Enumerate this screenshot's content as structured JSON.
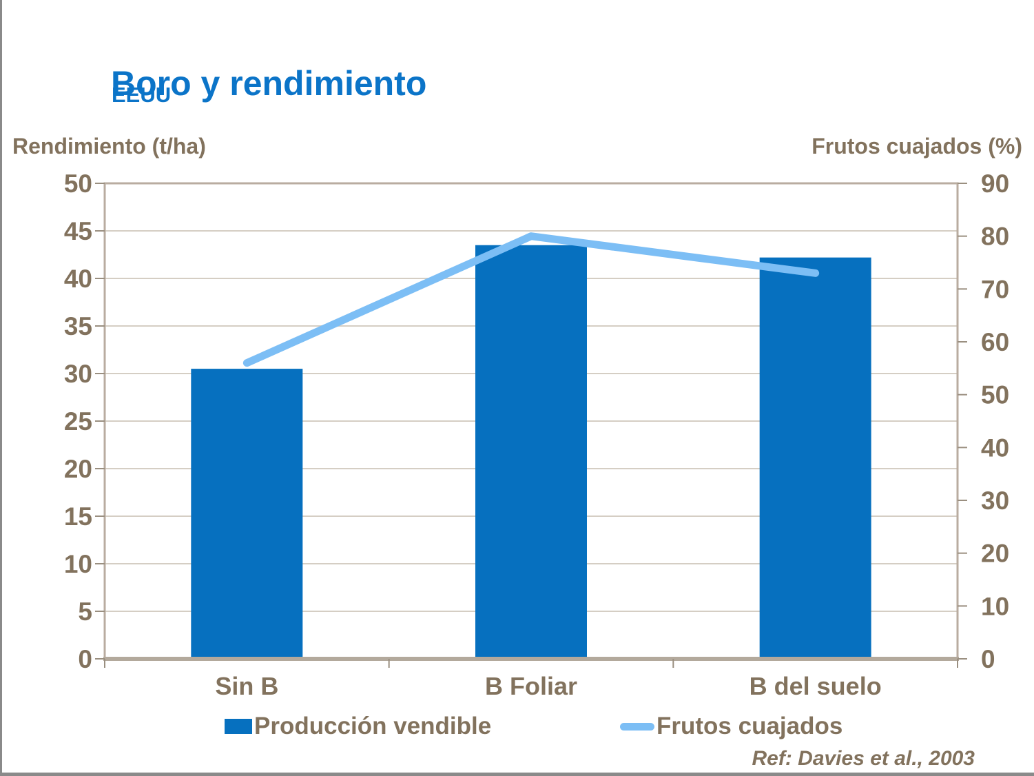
{
  "slide": {
    "title": "Boro y rendimiento",
    "subtitle": "EEUU",
    "reference": "Ref: Davies et al., 2003"
  },
  "axes": {
    "left_title": "Rendimiento (t/ha)",
    "right_title": "Frutos cuajados (%)"
  },
  "legend": {
    "items": [
      {
        "label": "Producción vendible",
        "marker": "bar-swatch"
      },
      {
        "label": "Frutos cuajados",
        "marker": "line-swatch"
      }
    ],
    "position": "bottom"
  },
  "colors": {
    "title_blue": "#0b74c8",
    "bar_blue": "#0670bf",
    "line_light_blue": "#7cbef5",
    "text_brown": "#82725d",
    "gridline": "#d5cec4",
    "plot_border": "#b9aca0",
    "bottom_axis": "#b3a99c",
    "tick": "#9a8f80",
    "slide_edge_gray": "#8a8a8a"
  },
  "chart_data": {
    "type": "bar",
    "subtype": "bar+line combo, dual axis",
    "title": "Boro y rendimiento — EEUU",
    "categories": [
      "Sin B",
      "B Foliar",
      "B del suelo"
    ],
    "series": [
      {
        "name": "Producción vendible",
        "type": "bar",
        "axis": "left",
        "values": [
          30.5,
          43.5,
          42.2
        ],
        "color": "#0670bf"
      },
      {
        "name": "Frutos cuajados",
        "type": "line",
        "axis": "right",
        "values": [
          56,
          80,
          73
        ],
        "color": "#7cbef5"
      }
    ],
    "left_axis": {
      "label": "Rendimiento (t/ha)",
      "min": 0,
      "max": 50,
      "step": 5,
      "ticks": [
        0,
        5,
        10,
        15,
        20,
        25,
        30,
        35,
        40,
        45,
        50
      ]
    },
    "right_axis": {
      "label": "Frutos cuajados (%)",
      "min": 0,
      "max": 90,
      "step": 10,
      "ticks": [
        0,
        10,
        20,
        30,
        40,
        50,
        60,
        70,
        80,
        90
      ]
    },
    "grid": true,
    "gridlines_follow": "left_axis",
    "legend_position": "bottom",
    "annotation": "Ref: Davies et al., 2003"
  }
}
